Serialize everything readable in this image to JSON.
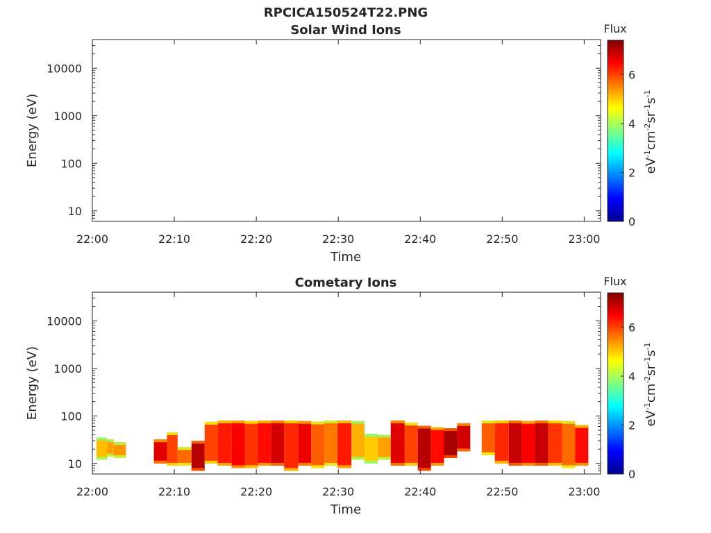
{
  "figure_title": "RPCICA150524T22.PNG",
  "colors": {
    "axis": "#262626",
    "colormap": [
      "#00008f",
      "#0000ff",
      "#0080ff",
      "#00ffff",
      "#80ff80",
      "#ffff00",
      "#ff8000",
      "#ff0000",
      "#800000"
    ]
  },
  "chart_data": [
    {
      "type": "heatmap",
      "title": "Solar Wind Ions",
      "xlabel": "Time",
      "ylabel": "Energy (eV)",
      "x_ticks": [
        "22:00",
        "22:10",
        "22:20",
        "22:30",
        "22:40",
        "22:50",
        "23:00"
      ],
      "y_scale": "log",
      "y_ticks": [
        "10",
        "100",
        "1000",
        "10000"
      ],
      "ylim": [
        6,
        40000
      ],
      "xlim_minutes": [
        0,
        62
      ],
      "colorbar": {
        "title": "Flux",
        "label": "eV-1cm-2sr-1s-1",
        "range": [
          0,
          7.4
        ],
        "ticks": [
          "0",
          "2",
          "4",
          "6"
        ]
      },
      "blocks": []
    },
    {
      "type": "heatmap",
      "title": "Cometary Ions",
      "xlabel": "Time",
      "ylabel": "Energy (eV)",
      "x_ticks": [
        "22:00",
        "22:10",
        "22:20",
        "22:30",
        "22:40",
        "22:50",
        "23:00"
      ],
      "y_scale": "log",
      "y_ticks": [
        "10",
        "100",
        "1000",
        "10000"
      ],
      "ylim": [
        6,
        40000
      ],
      "xlim_minutes": [
        0,
        62
      ],
      "colorbar": {
        "title": "Flux",
        "label": "eV-1cm-2sr-1s-1",
        "range": [
          0,
          7.4
        ],
        "ticks": [
          "0",
          "2",
          "4",
          "6"
        ]
      },
      "blocks": [
        {
          "t0": 0.5,
          "t1": 1.8,
          "e0": 12,
          "e1": 35,
          "v": 5.1
        },
        {
          "t0": 1.8,
          "t1": 2.6,
          "e0": 14,
          "e1": 32,
          "v": 5.3
        },
        {
          "t0": 2.6,
          "t1": 4.1,
          "e0": 13,
          "e1": 28,
          "v": 5.4
        },
        {
          "t0": 7.5,
          "t1": 9.1,
          "e0": 10,
          "e1": 32,
          "v": 6.7
        },
        {
          "t0": 9.1,
          "t1": 10.4,
          "e0": 9,
          "e1": 45,
          "v": 6.0
        },
        {
          "t0": 10.4,
          "t1": 12.1,
          "e0": 9,
          "e1": 22,
          "v": 5.7
        },
        {
          "t0": 12.1,
          "t1": 13.7,
          "e0": 7,
          "e1": 30,
          "v": 7.0
        },
        {
          "t0": 13.7,
          "t1": 15.3,
          "e0": 10,
          "e1": 75,
          "v": 6.0
        },
        {
          "t0": 15.3,
          "t1": 17.0,
          "e0": 9,
          "e1": 80,
          "v": 6.3
        },
        {
          "t0": 17.0,
          "t1": 18.6,
          "e0": 8,
          "e1": 80,
          "v": 6.5
        },
        {
          "t0": 18.6,
          "t1": 20.2,
          "e0": 8,
          "e1": 78,
          "v": 6.1
        },
        {
          "t0": 20.2,
          "t1": 21.8,
          "e0": 9,
          "e1": 80,
          "v": 6.4
        },
        {
          "t0": 21.8,
          "t1": 23.4,
          "e0": 9,
          "e1": 80,
          "v": 6.8
        },
        {
          "t0": 23.4,
          "t1": 25.1,
          "e0": 7,
          "e1": 80,
          "v": 6.2
        },
        {
          "t0": 25.1,
          "t1": 26.7,
          "e0": 9,
          "e1": 78,
          "v": 6.6
        },
        {
          "t0": 26.7,
          "t1": 28.3,
          "e0": 8,
          "e1": 76,
          "v": 5.8
        },
        {
          "t0": 28.3,
          "t1": 29.9,
          "e0": 9,
          "e1": 80,
          "v": 5.6
        },
        {
          "t0": 29.9,
          "t1": 31.6,
          "e0": 8,
          "e1": 80,
          "v": 6.3
        },
        {
          "t0": 31.6,
          "t1": 33.2,
          "e0": 12,
          "e1": 78,
          "v": 5.2
        },
        {
          "t0": 33.2,
          "t1": 34.8,
          "e0": 10,
          "e1": 42,
          "v": 5.0
        },
        {
          "t0": 34.8,
          "t1": 36.4,
          "e0": 12,
          "e1": 40,
          "v": 5.3
        },
        {
          "t0": 36.4,
          "t1": 38.1,
          "e0": 9,
          "e1": 80,
          "v": 6.7
        },
        {
          "t0": 38.1,
          "t1": 39.7,
          "e0": 9,
          "e1": 72,
          "v": 6.0
        },
        {
          "t0": 39.7,
          "t1": 41.3,
          "e0": 7,
          "e1": 62,
          "v": 7.0
        },
        {
          "t0": 41.3,
          "t1": 42.9,
          "e0": 9,
          "e1": 58,
          "v": 6.4
        },
        {
          "t0": 42.9,
          "t1": 44.5,
          "e0": 13,
          "e1": 55,
          "v": 7.1
        },
        {
          "t0": 44.5,
          "t1": 46.1,
          "e0": 18,
          "e1": 70,
          "v": 6.8
        },
        {
          "t0": 47.5,
          "t1": 49.1,
          "e0": 15,
          "e1": 80,
          "v": 5.8
        },
        {
          "t0": 49.1,
          "t1": 50.8,
          "e0": 10,
          "e1": 80,
          "v": 6.2
        },
        {
          "t0": 50.8,
          "t1": 52.4,
          "e0": 9,
          "e1": 80,
          "v": 6.9
        },
        {
          "t0": 52.4,
          "t1": 54.0,
          "e0": 9,
          "e1": 78,
          "v": 6.5
        },
        {
          "t0": 54.0,
          "t1": 55.6,
          "e0": 9,
          "e1": 80,
          "v": 6.9
        },
        {
          "t0": 55.6,
          "t1": 57.3,
          "e0": 9,
          "e1": 80,
          "v": 6.1
        },
        {
          "t0": 57.3,
          "t1": 58.9,
          "e0": 8,
          "e1": 78,
          "v": 5.7
        },
        {
          "t0": 58.9,
          "t1": 60.5,
          "e0": 9,
          "e1": 64,
          "v": 6.4
        }
      ]
    }
  ]
}
